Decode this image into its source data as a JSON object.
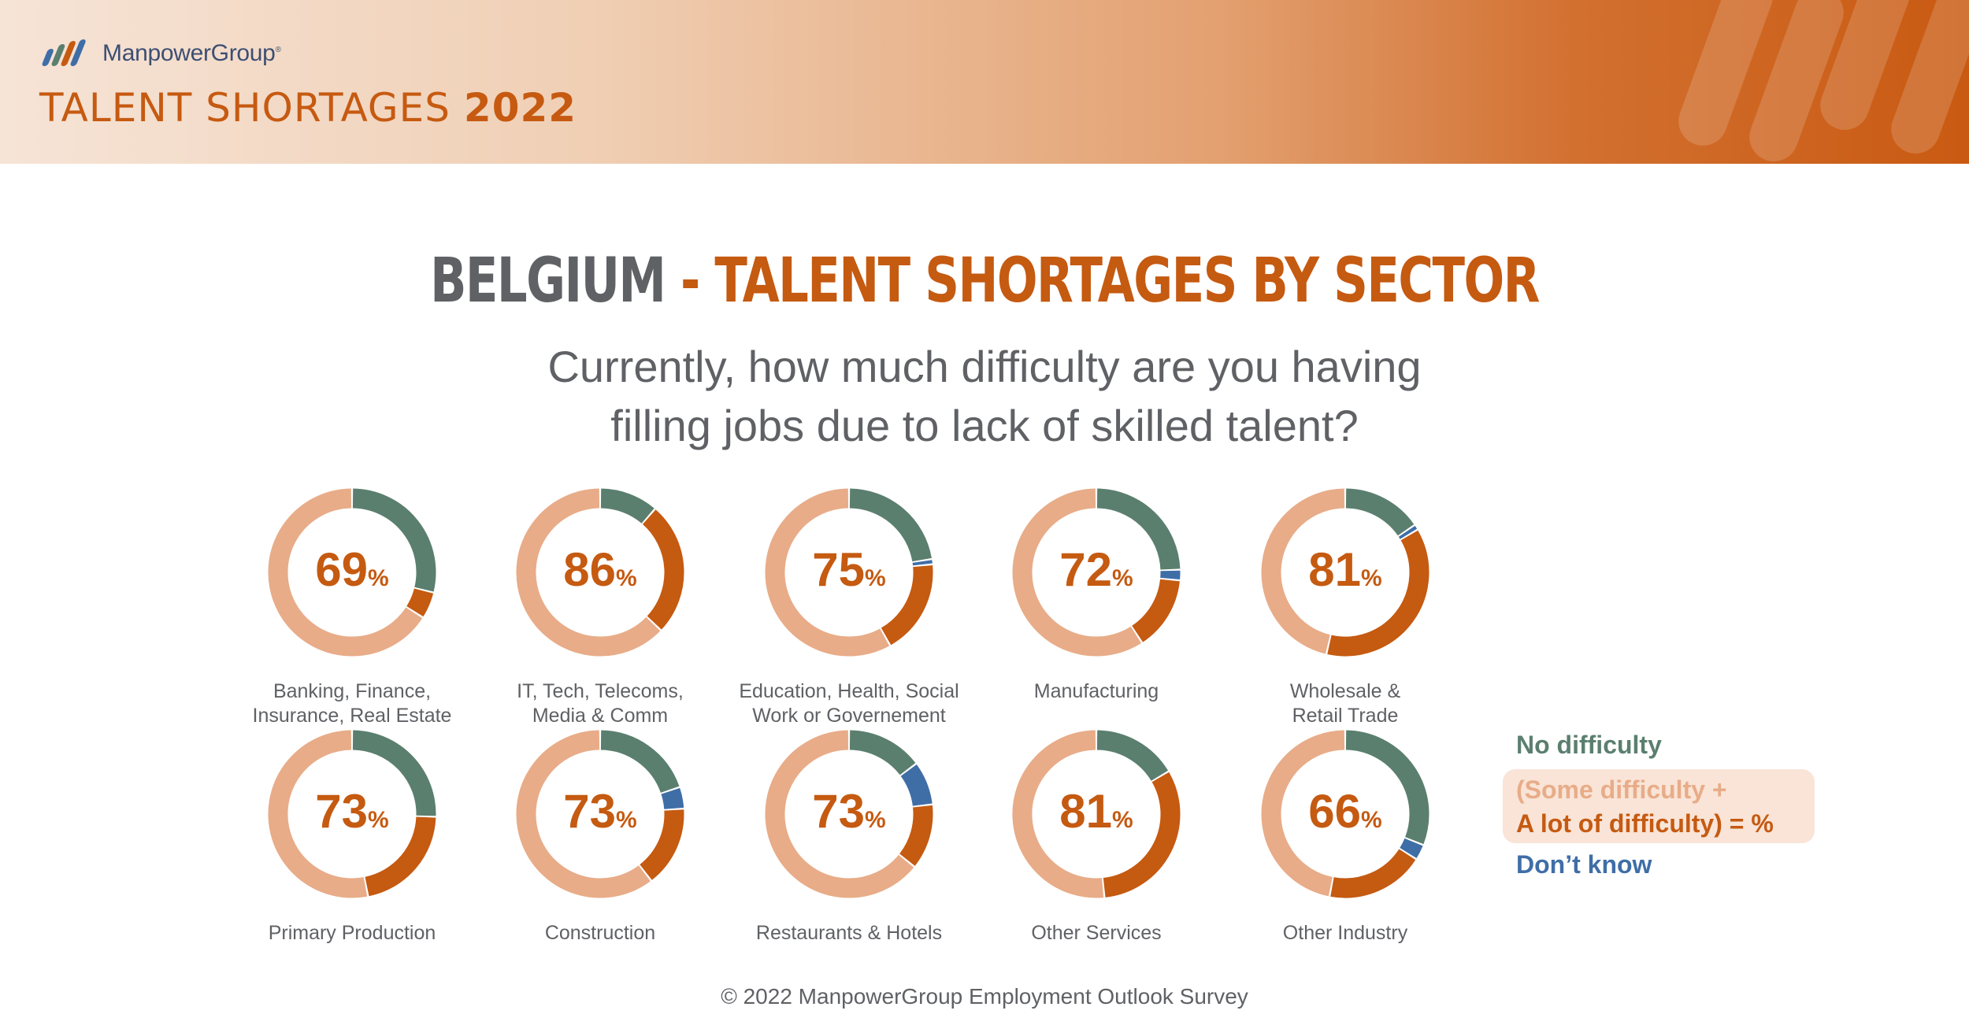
{
  "header": {
    "logo_text": "ManpowerGroup",
    "logo_mark": "®",
    "title_main": "TALENT SHORTAGES",
    "title_year": "2022"
  },
  "title": {
    "country": "BELGIUM",
    "dash": "-",
    "rest": "TALENT SHORTAGES BY SECTOR"
  },
  "question": {
    "line1": "Currently, how much difficulty are you having",
    "line2": "filling jobs due to lack of skilled talent?"
  },
  "percent_sign": "%",
  "colors": {
    "no_difficulty": "#5b7f6f",
    "some_difficulty": "#e8ac88",
    "lot_of_difficulty": "#c55a11",
    "dont_know": "#3f6ea7"
  },
  "chart_data": {
    "type": "donut",
    "segment_order": [
      "No difficulty",
      "Don’t know",
      "A lot of difficulty",
      "Some difficulty"
    ],
    "sectors": [
      {
        "label": [
          "Banking, Finance,",
          "Insurance, Real Estate"
        ],
        "total": 69,
        "no_difficulty": 28,
        "dont_know": 0,
        "a_lot": 5,
        "some": 64
      },
      {
        "label": [
          "IT, Tech, Telecoms,",
          "Media & Comm"
        ],
        "total": 86,
        "no_difficulty": 11,
        "dont_know": 0,
        "a_lot": 25,
        "some": 61
      },
      {
        "label": [
          "Education, Health, Social",
          "Work or Governement"
        ],
        "total": 75,
        "no_difficulty": 22,
        "dont_know": 1,
        "a_lot": 18,
        "some": 57
      },
      {
        "label": [
          "Manufacturing"
        ],
        "total": 72,
        "no_difficulty": 24,
        "dont_know": 2,
        "a_lot": 14,
        "some": 58
      },
      {
        "label": [
          "Wholesale &",
          "Retail Trade"
        ],
        "total": 81,
        "no_difficulty": 15,
        "dont_know": 1,
        "a_lot": 36,
        "some": 45
      },
      {
        "label": [
          "Primary Production"
        ],
        "total": 73,
        "no_difficulty": 25,
        "dont_know": 0,
        "a_lot": 21,
        "some": 52
      },
      {
        "label": [
          "Construction"
        ],
        "total": 73,
        "no_difficulty": 19,
        "dont_know": 4,
        "a_lot": 15,
        "some": 58
      },
      {
        "label": [
          "Restaurants & Hotels"
        ],
        "total": 73,
        "no_difficulty": 14,
        "dont_know": 8,
        "a_lot": 12,
        "some": 61
      },
      {
        "label": [
          "Other Services"
        ],
        "total": 81,
        "no_difficulty": 16,
        "dont_know": 0,
        "a_lot": 31,
        "some": 50
      },
      {
        "label": [
          "Other Industry"
        ],
        "total": 66,
        "no_difficulty": 31,
        "dont_know": 3,
        "a_lot": 19,
        "some": 47
      }
    ]
  },
  "legend": {
    "no_difficulty": "No difficulty",
    "some_line": "(Some difficulty +",
    "lot_line": "A lot of difficulty) = %",
    "dont_know": "Don’t know"
  },
  "footer": "© 2022 ManpowerGroup Employment Outlook Survey"
}
